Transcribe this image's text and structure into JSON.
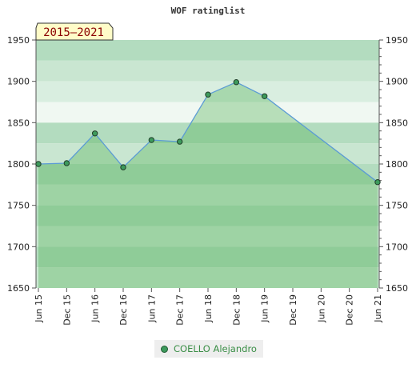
{
  "chart_data": {
    "type": "area",
    "title": "WOF ratinglist",
    "period_label": "2015–2021",
    "xlabel": "",
    "ylabel": "",
    "ylim": [
      1650,
      1950
    ],
    "yticks": [
      1650,
      1700,
      1750,
      1800,
      1850,
      1900,
      1950
    ],
    "x_tick_labels": [
      "Jun 15",
      "Dec 15",
      "Jun 16",
      "Dec 16",
      "Jun 17",
      "Dec 17",
      "Jun 18",
      "Dec 18",
      "Jun 19",
      "Dec 19",
      "Jun 20",
      "Dec 20",
      "Jun 21"
    ],
    "series": [
      {
        "name": "COELLO Alejandro",
        "x": [
          "Jun 15",
          "Dec 15",
          "Jun 16",
          "Dec 16",
          "Jun 17",
          "Dec 17",
          "Jun 18",
          "Dec 18",
          "Jun 19",
          "Jun 21"
        ],
        "values": [
          1800,
          1801,
          1837,
          1796,
          1829,
          1827,
          1884,
          1899,
          1882,
          1778
        ]
      }
    ],
    "legend_position": "bottom-center",
    "grid": false,
    "colors": {
      "line": "#5b9bd5",
      "area": "#4caf50",
      "marker": "#3d9a5c",
      "band_dark": "#a8d9b6",
      "band_light": "#d6eedd"
    }
  }
}
